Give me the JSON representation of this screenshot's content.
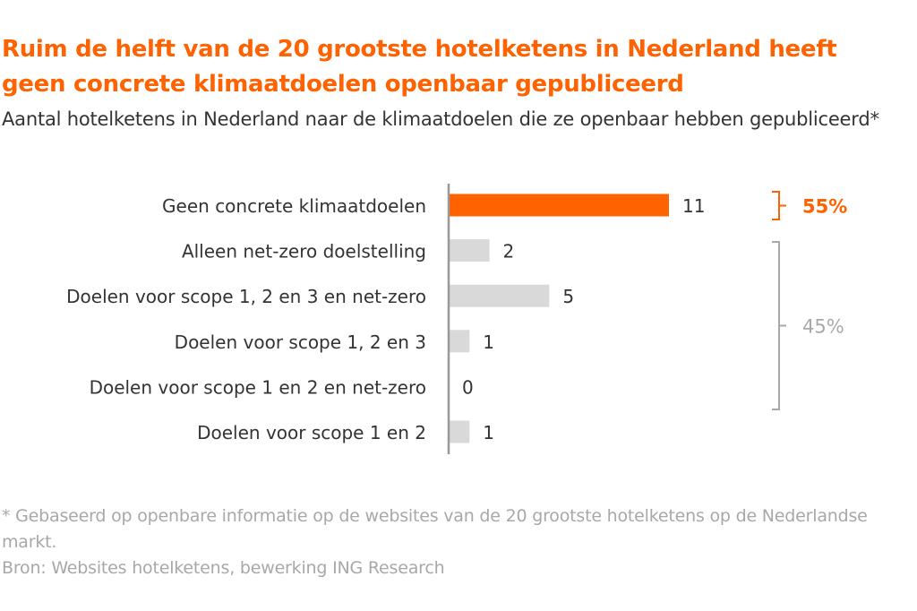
{
  "chart_data": {
    "type": "bar",
    "orientation": "horizontal",
    "title": "Ruim de helft van de 20 grootste hotelketens in Nederland heeft geen concrete klimaatdoelen openbaar gepubliceerd",
    "subtitle": "Aantal hotelketens in Nederland naar de klimaatdoelen die ze openbaar hebben gepubliceerd*",
    "categories": [
      "Geen concrete klimaatdoelen",
      "Alleen net-zero doelstelling",
      "Doelen voor scope 1, 2 en 3 en net-zero",
      "Doelen voor scope 1, 2 en 3",
      "Doelen voor scope 1 en 2 en net-zero",
      "Doelen voor scope 1 en 2"
    ],
    "values": [
      11,
      2,
      5,
      1,
      0,
      1
    ],
    "colors": [
      "#ff6200",
      "#d9d9d9",
      "#d9d9d9",
      "#d9d9d9",
      "#d9d9d9",
      "#d9d9d9"
    ],
    "xlim": [
      0,
      11
    ],
    "grid": false,
    "annotations": [
      {
        "label": "55%",
        "covers": [
          "Geen concrete klimaatdoelen"
        ],
        "color": "#ff6200"
      },
      {
        "label": "45%",
        "covers": [
          "Alleen net-zero doelstelling",
          "Doelen voor scope 1 en 2"
        ],
        "color": "#a8a8a8"
      }
    ],
    "footnote": "* Gebaseerd op openbare informatie op de websites van de 20 grootste hotelketens op de Nederlandse markt.",
    "source": "Bron: Websites hotelketens, bewerking ING Research"
  }
}
